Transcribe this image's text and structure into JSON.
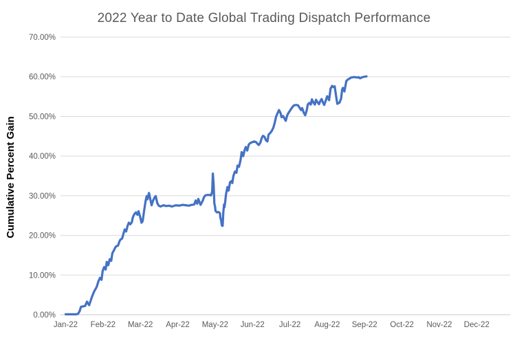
{
  "page": {
    "background_color": "#ffffff"
  },
  "chart_data": {
    "type": "line",
    "title": "2022 Year to Date Global Trading Dispatch Performance",
    "title_color": "#595959",
    "ylabel": "Cumulative Percent Gain",
    "xlabel": "",
    "x_tick_labels": [
      "Jan-22",
      "Feb-22",
      "Mar-22",
      "Apr-22",
      "May-22",
      "Jun-22",
      "Jul-22",
      "Aug-22",
      "Sep-22",
      "Oct-22",
      "Nov-22",
      "Dec-22"
    ],
    "y_ticks": [
      {
        "v": 0,
        "label": "0.00%"
      },
      {
        "v": 10,
        "label": "10.00%"
      },
      {
        "v": 20,
        "label": "20.00%"
      },
      {
        "v": 30,
        "label": "30.00%"
      },
      {
        "v": 40,
        "label": "40.00%"
      },
      {
        "v": 50,
        "label": "50.00%"
      },
      {
        "v": 60,
        "label": "60.00%"
      },
      {
        "v": 70,
        "label": "70.00%"
      }
    ],
    "ylim": [
      0,
      70
    ],
    "xlim_months": [
      0,
      11
    ],
    "grid": true,
    "gridline_color": "#d9d9d9",
    "axis_label_color": "#595959",
    "legend": "none",
    "series": [
      {
        "name": "Cumulative Percent Gain",
        "color": "#4472C4",
        "points": [
          [
            0.0,
            0.1
          ],
          [
            0.09,
            0.1
          ],
          [
            0.18,
            0.1
          ],
          [
            0.28,
            0.1
          ],
          [
            0.33,
            0.2
          ],
          [
            0.37,
            0.8
          ],
          [
            0.41,
            2.0
          ],
          [
            0.46,
            2.1
          ],
          [
            0.52,
            2.2
          ],
          [
            0.57,
            3.3
          ],
          [
            0.63,
            2.4
          ],
          [
            0.7,
            4.4
          ],
          [
            0.76,
            5.8
          ],
          [
            0.83,
            7.0
          ],
          [
            0.88,
            8.5
          ],
          [
            0.92,
            9.3
          ],
          [
            0.96,
            8.8
          ],
          [
            0.99,
            11.0
          ],
          [
            1.03,
            12.0
          ],
          [
            1.07,
            11.4
          ],
          [
            1.1,
            13.3
          ],
          [
            1.14,
            12.5
          ],
          [
            1.18,
            14.0
          ],
          [
            1.22,
            13.6
          ],
          [
            1.25,
            15.5
          ],
          [
            1.29,
            16.2
          ],
          [
            1.33,
            17.0
          ],
          [
            1.36,
            17.3
          ],
          [
            1.4,
            17.4
          ],
          [
            1.44,
            18.5
          ],
          [
            1.47,
            19.0
          ],
          [
            1.51,
            19.2
          ],
          [
            1.55,
            20.5
          ],
          [
            1.58,
            21.5
          ],
          [
            1.62,
            21.0
          ],
          [
            1.66,
            22.5
          ],
          [
            1.69,
            23.2
          ],
          [
            1.73,
            22.8
          ],
          [
            1.77,
            23.3
          ],
          [
            1.8,
            24.6
          ],
          [
            1.84,
            25.4
          ],
          [
            1.88,
            25.8
          ],
          [
            1.92,
            25.2
          ],
          [
            1.95,
            26.1
          ],
          [
            1.99,
            24.8
          ],
          [
            2.03,
            23.2
          ],
          [
            2.06,
            23.6
          ],
          [
            2.1,
            26.2
          ],
          [
            2.14,
            28.7
          ],
          [
            2.17,
            29.9
          ],
          [
            2.19,
            29.1
          ],
          [
            2.23,
            30.7
          ],
          [
            2.27,
            28.9
          ],
          [
            2.3,
            27.6
          ],
          [
            2.34,
            28.8
          ],
          [
            2.38,
            29.6
          ],
          [
            2.41,
            29.9
          ],
          [
            2.45,
            28.2
          ],
          [
            2.49,
            27.5
          ],
          [
            2.54,
            27.3
          ],
          [
            2.62,
            27.6
          ],
          [
            2.69,
            27.4
          ],
          [
            2.76,
            27.5
          ],
          [
            2.85,
            27.3
          ],
          [
            2.95,
            27.6
          ],
          [
            3.04,
            27.5
          ],
          [
            3.13,
            27.7
          ],
          [
            3.22,
            27.6
          ],
          [
            3.3,
            27.5
          ],
          [
            3.37,
            27.7
          ],
          [
            3.44,
            27.8
          ],
          [
            3.48,
            28.8
          ],
          [
            3.52,
            28.0
          ],
          [
            3.55,
            29.2
          ],
          [
            3.61,
            27.7
          ],
          [
            3.67,
            28.8
          ],
          [
            3.7,
            29.6
          ],
          [
            3.74,
            30.1
          ],
          [
            3.79,
            30.2
          ],
          [
            3.85,
            30.2
          ],
          [
            3.89,
            30.1
          ],
          [
            3.92,
            31.0
          ],
          [
            3.94,
            35.6
          ],
          [
            3.96,
            33.0
          ],
          [
            3.98,
            28.0
          ],
          [
            4.0,
            27.2
          ],
          [
            4.01,
            26.2
          ],
          [
            4.05,
            25.8
          ],
          [
            4.09,
            25.9
          ],
          [
            4.13,
            25.6
          ],
          [
            4.14,
            24.5
          ],
          [
            4.16,
            23.8
          ],
          [
            4.18,
            22.5
          ],
          [
            4.2,
            22.4
          ],
          [
            4.22,
            26.0
          ],
          [
            4.24,
            27.8
          ],
          [
            4.25,
            27.1
          ],
          [
            4.27,
            28.5
          ],
          [
            4.29,
            30.3
          ],
          [
            4.33,
            32.2
          ],
          [
            4.35,
            31.9
          ],
          [
            4.36,
            31.3
          ],
          [
            4.4,
            33.4
          ],
          [
            4.44,
            33.7
          ],
          [
            4.46,
            33.2
          ],
          [
            4.49,
            35.0
          ],
          [
            4.53,
            36.1
          ],
          [
            4.57,
            35.8
          ],
          [
            4.6,
            37.6
          ],
          [
            4.64,
            37.3
          ],
          [
            4.68,
            39.0
          ],
          [
            4.71,
            41.0
          ],
          [
            4.75,
            40.0
          ],
          [
            4.79,
            41.5
          ],
          [
            4.82,
            42.3
          ],
          [
            4.86,
            41.4
          ],
          [
            4.9,
            42.9
          ],
          [
            4.94,
            43.3
          ],
          [
            4.99,
            43.5
          ],
          [
            5.05,
            43.7
          ],
          [
            5.1,
            43.5
          ],
          [
            5.14,
            43.0
          ],
          [
            5.17,
            42.8
          ],
          [
            5.21,
            43.4
          ],
          [
            5.25,
            44.6
          ],
          [
            5.28,
            45.1
          ],
          [
            5.32,
            44.9
          ],
          [
            5.36,
            44.0
          ],
          [
            5.4,
            43.7
          ],
          [
            5.43,
            45.4
          ],
          [
            5.47,
            45.8
          ],
          [
            5.52,
            46.4
          ],
          [
            5.56,
            47.2
          ],
          [
            5.6,
            48.6
          ],
          [
            5.63,
            49.9
          ],
          [
            5.67,
            50.8
          ],
          [
            5.71,
            51.6
          ],
          [
            5.75,
            50.9
          ],
          [
            5.78,
            49.8
          ],
          [
            5.82,
            50.1
          ],
          [
            5.86,
            49.4
          ],
          [
            5.89,
            48.9
          ],
          [
            5.93,
            50.3
          ],
          [
            5.97,
            51.0
          ],
          [
            6.0,
            51.4
          ],
          [
            6.04,
            52.0
          ],
          [
            6.08,
            52.5
          ],
          [
            6.11,
            52.8
          ],
          [
            6.17,
            52.9
          ],
          [
            6.22,
            52.8
          ],
          [
            6.26,
            52.2
          ],
          [
            6.3,
            51.6
          ],
          [
            6.33,
            52.1
          ],
          [
            6.37,
            51.0
          ],
          [
            6.41,
            50.3
          ],
          [
            6.45,
            51.5
          ],
          [
            6.48,
            53.0
          ],
          [
            6.52,
            53.4
          ],
          [
            6.56,
            53.0
          ],
          [
            6.59,
            54.3
          ],
          [
            6.63,
            53.5
          ],
          [
            6.67,
            53.0
          ],
          [
            6.7,
            54.2
          ],
          [
            6.74,
            53.6
          ],
          [
            6.78,
            53.1
          ],
          [
            6.81,
            53.8
          ],
          [
            6.85,
            54.4
          ],
          [
            6.89,
            53.4
          ],
          [
            6.92,
            52.9
          ],
          [
            6.96,
            54.0
          ],
          [
            7.0,
            55.1
          ],
          [
            7.05,
            54.1
          ],
          [
            7.09,
            57.0
          ],
          [
            7.13,
            57.7
          ],
          [
            7.16,
            57.4
          ],
          [
            7.2,
            57.6
          ],
          [
            7.24,
            55.0
          ],
          [
            7.27,
            53.2
          ],
          [
            7.33,
            53.5
          ],
          [
            7.37,
            54.5
          ],
          [
            7.4,
            56.8
          ],
          [
            7.42,
            57.2
          ],
          [
            7.46,
            56.3
          ],
          [
            7.51,
            58.9
          ],
          [
            7.55,
            59.3
          ],
          [
            7.59,
            59.5
          ],
          [
            7.64,
            59.8
          ],
          [
            7.7,
            59.9
          ],
          [
            7.75,
            59.9
          ],
          [
            7.81,
            59.8
          ],
          [
            7.84,
            59.9
          ],
          [
            7.88,
            59.6
          ],
          [
            7.94,
            59.9
          ],
          [
            7.99,
            60.0
          ],
          [
            8.05,
            60.1
          ]
        ]
      }
    ]
  }
}
